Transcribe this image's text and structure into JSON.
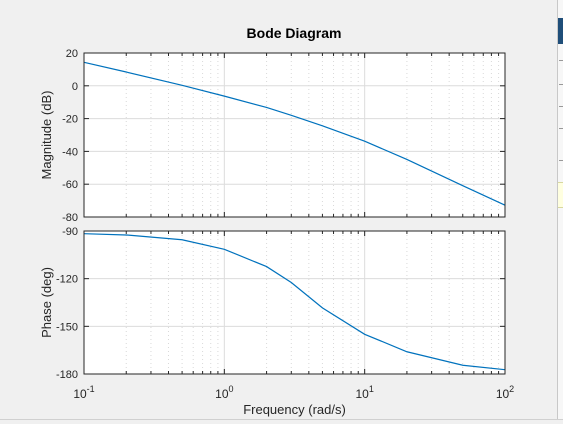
{
  "chart_data": {
    "type": "line",
    "title": "Bode Diagram",
    "xlabel": "Frequency  (rad/s)",
    "xscale": "log",
    "xlim": [
      0.1,
      100
    ],
    "x_tick_labels": [
      {
        "base": "10",
        "exp": "-1"
      },
      {
        "base": "10",
        "exp": "0"
      },
      {
        "base": "10",
        "exp": "1"
      },
      {
        "base": "10",
        "exp": "2"
      }
    ],
    "grid": true,
    "line_color": "#0072bd",
    "panels": [
      {
        "name": "magnitude",
        "ylabel": "Magnitude (dB)",
        "ylim": [
          -80,
          20
        ],
        "yticks": [
          20,
          0,
          -20,
          -40,
          -60,
          -80
        ],
        "x": [
          0.1,
          0.2,
          0.5,
          1,
          2,
          3,
          5,
          10,
          20,
          50,
          100
        ],
        "y": [
          14.3,
          8.4,
          0.3,
          -6.3,
          -13.2,
          -18.0,
          -24.4,
          -33.8,
          -44.9,
          -60.9,
          -72.8
        ]
      },
      {
        "name": "phase",
        "ylabel": "Phase (deg)",
        "ylim": [
          -180,
          -90
        ],
        "yticks": [
          -90,
          -120,
          -150,
          -180
        ],
        "x": [
          0.1,
          0.2,
          0.5,
          1,
          2,
          3,
          5,
          10,
          20,
          50,
          100
        ],
        "y": [
          -91.7,
          -92.5,
          -95.5,
          -101.5,
          -112.4,
          -122.4,
          -138.4,
          -155.0,
          -166.0,
          -174.5,
          -177.3
        ]
      }
    ]
  }
}
